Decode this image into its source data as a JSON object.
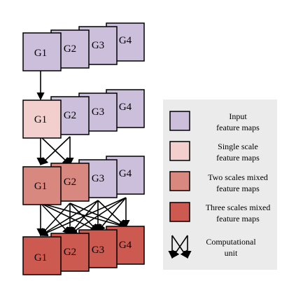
{
  "colors": {
    "input": "#cbbfdc",
    "single": "#f2cfcc",
    "two": "#d98880",
    "three": "#cc5a50",
    "legend_bg": "#ebebeb"
  },
  "rows": [
    {
      "type": "input",
      "labels": [
        "G1",
        "G2",
        "G3",
        "G4"
      ]
    },
    {
      "type": "single",
      "labels": [
        "G1",
        "G2",
        "G3",
        "G4"
      ]
    },
    {
      "type": "two",
      "labels": [
        "G1",
        "G2",
        "G3",
        "G4"
      ]
    },
    {
      "type": "three",
      "labels": [
        "G1",
        "G2",
        "G3",
        "G4"
      ]
    }
  ],
  "legend": {
    "input": {
      "line1": "Input",
      "line2": "feature maps"
    },
    "single": {
      "line1": "Single scale",
      "line2": "feature maps"
    },
    "two": {
      "line1": "Two scales mixed",
      "line2": "feature maps"
    },
    "three": {
      "line1": "Three scales mixed",
      "line2": "feature maps"
    },
    "unit": {
      "line1": "Computational",
      "line2": "unit"
    }
  }
}
